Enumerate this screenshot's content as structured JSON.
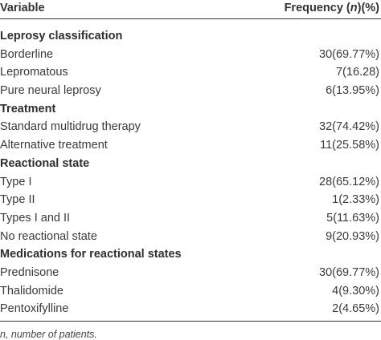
{
  "table": {
    "header": {
      "variable": "Variable",
      "frequency_prefix": "Frequency (",
      "frequency_n": "n",
      "frequency_suffix": ")(%)"
    },
    "rows": [
      {
        "type": "section",
        "label": "Leprosy classification",
        "value": ""
      },
      {
        "type": "item",
        "label": "Borderline",
        "value": "30(69.77%)"
      },
      {
        "type": "item",
        "label": "Lepromatous",
        "value": "7(16.28)"
      },
      {
        "type": "item",
        "label": "Pure neural leprosy",
        "value": "6(13.95%)"
      },
      {
        "type": "section",
        "label": "Treatment",
        "value": ""
      },
      {
        "type": "item",
        "label": "Standard multidrug therapy",
        "value": "32(74.42%)"
      },
      {
        "type": "item",
        "label": "Alternative treatment",
        "value": "11(25.58%)"
      },
      {
        "type": "section",
        "label": "Reactional state",
        "value": ""
      },
      {
        "type": "item",
        "label": "Type I",
        "value": "28(65.12%)"
      },
      {
        "type": "item",
        "label": "Type II",
        "value": "1(2.33%)"
      },
      {
        "type": "item",
        "label": "Types I and II",
        "value": "5(11.63%)"
      },
      {
        "type": "item",
        "label": "No reactional state",
        "value": "9(20.93%)"
      },
      {
        "type": "section",
        "label": "Medications for reactional states",
        "value": ""
      },
      {
        "type": "item",
        "label": "Prednisone",
        "value": "30(69.77%)"
      },
      {
        "type": "item",
        "label": "Thalidomide",
        "value": "4(9.30%)"
      },
      {
        "type": "item",
        "label": "Pentoxifylline",
        "value": "2(4.65%)"
      }
    ],
    "footnote": "n, number of patients."
  }
}
